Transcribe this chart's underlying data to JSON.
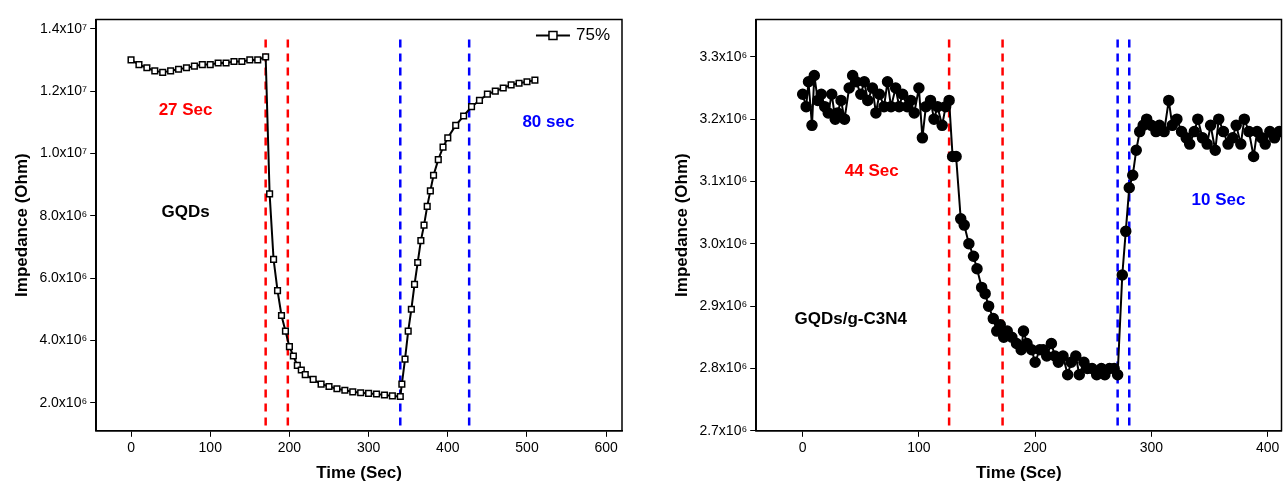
{
  "chart_data": [
    {
      "type": "line",
      "xlabel": "Time (Sec)",
      "ylabel": "Impedance (Ohm)",
      "xlim": [
        -44,
        620
      ],
      "xticks": [
        0,
        100,
        200,
        300,
        400,
        500,
        600
      ],
      "ylim": [
        1100000,
        14300000
      ],
      "yticks": [
        {
          "value": 2000000,
          "label": "2.0x10⁶"
        },
        {
          "value": 4000000,
          "label": "4.0x10⁶"
        },
        {
          "value": 6000000,
          "label": "6.0x10⁶"
        },
        {
          "value": 8000000,
          "label": "8.0x10⁶"
        },
        {
          "value": 10000000,
          "label": "1.0x10⁷"
        },
        {
          "value": 12000000,
          "label": "1.2x10⁷"
        },
        {
          "value": 14000000,
          "label": "1.4x10⁷"
        }
      ],
      "grid": false,
      "legend": "top right",
      "marker": "square",
      "line_style": "solid",
      "series": [
        {
          "name": "75%",
          "color": "#000000",
          "x": [
            0,
            10,
            20,
            30,
            40,
            50,
            60,
            70,
            80,
            90,
            100,
            110,
            120,
            130,
            140,
            150,
            160,
            170,
            175,
            180,
            185,
            190,
            195,
            200,
            205,
            210,
            215,
            220,
            230,
            240,
            250,
            260,
            270,
            280,
            290,
            300,
            310,
            320,
            330,
            340,
            342,
            346,
            350,
            354,
            358,
            362,
            366,
            370,
            374,
            378,
            382,
            388,
            394,
            400,
            410,
            420,
            430,
            440,
            450,
            460,
            470,
            480,
            490,
            500,
            510
          ],
          "values": [
            13000000,
            12850000,
            12750000,
            12650000,
            12600000,
            12650000,
            12700000,
            12750000,
            12800000,
            12850000,
            12850000,
            12900000,
            12900000,
            12950000,
            12950000,
            13000000,
            13000000,
            13100000,
            8700000,
            6600000,
            5600000,
            4800000,
            4300000,
            3800000,
            3500000,
            3200000,
            3050000,
            2900000,
            2750000,
            2600000,
            2520000,
            2450000,
            2400000,
            2350000,
            2320000,
            2300000,
            2280000,
            2250000,
            2220000,
            2200000,
            2600000,
            3400000,
            4300000,
            5000000,
            5800000,
            6500000,
            7200000,
            7700000,
            8300000,
            8800000,
            9300000,
            9800000,
            10200000,
            10500000,
            10900000,
            11200000,
            11500000,
            11700000,
            11900000,
            12000000,
            12100000,
            12200000,
            12250000,
            12300000,
            12350000
          ]
        }
      ],
      "ref_lines": [
        {
          "axis": "x",
          "value": 170,
          "color": "#ff0000",
          "line_style": "dashed"
        },
        {
          "axis": "x",
          "value": 198,
          "color": "#ff0000",
          "line_style": "dashed"
        },
        {
          "axis": "x",
          "value": 340,
          "color": "#0000ff",
          "line_style": "dashed"
        },
        {
          "axis": "x",
          "value": 427,
          "color": "#0000ff",
          "line_style": "dashed"
        }
      ],
      "annotations": [
        "27 Sec",
        "80 sec",
        "GQDs"
      ]
    },
    {
      "type": "line",
      "xlabel": "Time (Sce)",
      "ylabel": "Impedance (Ohm)",
      "xlim": [
        -40,
        412
      ],
      "xticks": [
        0,
        100,
        200,
        300,
        400
      ],
      "ylim": [
        2700000,
        3360000
      ],
      "yticks": [
        {
          "value": 2700000,
          "label": "2.7x10⁶"
        },
        {
          "value": 2800000,
          "label": "2.8x10⁶"
        },
        {
          "value": 2900000,
          "label": "2.9x10⁶"
        },
        {
          "value": 3000000,
          "label": "3.0x10⁶"
        },
        {
          "value": 3100000,
          "label": "3.1x10⁶"
        },
        {
          "value": 3200000,
          "label": "3.2x10⁶"
        },
        {
          "value": 3300000,
          "label": "3.3x10⁶"
        }
      ],
      "grid": false,
      "marker": "circle",
      "line_style": "solid",
      "series": [
        {
          "color": "#000000",
          "x": [
            0,
            3,
            5,
            8,
            10,
            13,
            16,
            19,
            22,
            25,
            28,
            30,
            33,
            36,
            40,
            43,
            46,
            50,
            53,
            56,
            60,
            63,
            66,
            70,
            73,
            76,
            80,
            83,
            86,
            90,
            93,
            96,
            100,
            103,
            106,
            110,
            113,
            116,
            120,
            123,
            126,
            129,
            132,
            136,
            139,
            143,
            147,
            150,
            154,
            157,
            160,
            164,
            167,
            170,
            173,
            176,
            180,
            184,
            188,
            190,
            193,
            197,
            200,
            204,
            207,
            210,
            214,
            217,
            220,
            224,
            228,
            231,
            235,
            238,
            242,
            245,
            249,
            253,
            257,
            260,
            264,
            268,
            271,
            275,
            278,
            281,
            284,
            287,
            290,
            293,
            296,
            300,
            304,
            307,
            311,
            315,
            318,
            322,
            326,
            330,
            333,
            337,
            340,
            344,
            348,
            351,
            355,
            358,
            362,
            366,
            370,
            373,
            377,
            380,
            384,
            388,
            391,
            395,
            398,
            402,
            406,
            410
          ],
          "values": [
            3240000,
            3220000,
            3260000,
            3190000,
            3270000,
            3230000,
            3240000,
            3220000,
            3210000,
            3240000,
            3200000,
            3210000,
            3230000,
            3200000,
            3250000,
            3270000,
            3260000,
            3240000,
            3260000,
            3230000,
            3250000,
            3210000,
            3240000,
            3220000,
            3260000,
            3220000,
            3250000,
            3220000,
            3240000,
            3220000,
            3230000,
            3210000,
            3250000,
            3170000,
            3220000,
            3230000,
            3200000,
            3220000,
            3190000,
            3220000,
            3230000,
            3140000,
            3140000,
            3040000,
            3030000,
            3000000,
            2980000,
            2960000,
            2930000,
            2920000,
            2900000,
            2880000,
            2860000,
            2870000,
            2850000,
            2860000,
            2850000,
            2840000,
            2830000,
            2860000,
            2840000,
            2830000,
            2810000,
            2830000,
            2830000,
            2820000,
            2840000,
            2820000,
            2810000,
            2820000,
            2790000,
            2810000,
            2820000,
            2790000,
            2810000,
            2800000,
            2800000,
            2790000,
            2800000,
            2790000,
            2800000,
            2800000,
            2790000,
            2950000,
            3020000,
            3090000,
            3110000,
            3150000,
            3180000,
            3190000,
            3200000,
            3190000,
            3180000,
            3190000,
            3180000,
            3230000,
            3190000,
            3200000,
            3180000,
            3170000,
            3160000,
            3180000,
            3200000,
            3170000,
            3160000,
            3190000,
            3150000,
            3200000,
            3180000,
            3160000,
            3170000,
            3190000,
            3160000,
            3200000,
            3180000,
            3140000,
            3180000,
            3170000,
            3160000,
            3180000,
            3170000,
            3180000
          ]
        }
      ],
      "ref_lines": [
        {
          "axis": "x",
          "value": 126,
          "color": "#ff0000",
          "line_style": "dashed"
        },
        {
          "axis": "x",
          "value": 172,
          "color": "#ff0000",
          "line_style": "dashed"
        },
        {
          "axis": "x",
          "value": 271,
          "color": "#0000ff",
          "line_style": "dashed"
        },
        {
          "axis": "x",
          "value": 281,
          "color": "#0000ff",
          "line_style": "dashed"
        }
      ],
      "annotations": [
        "44 Sec",
        "10 Sec",
        "GQDs/g-C3N4"
      ]
    }
  ]
}
